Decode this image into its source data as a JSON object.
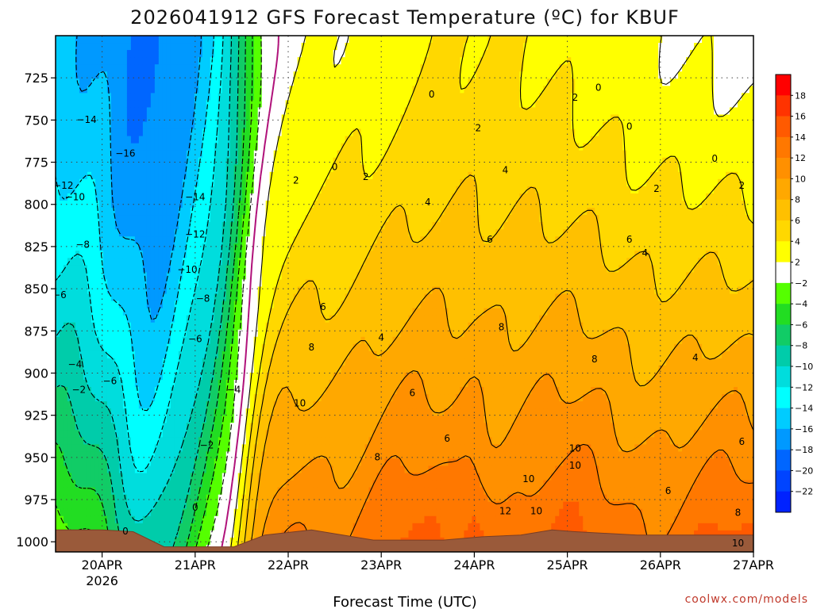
{
  "chart_data": {
    "type": "heatmap",
    "title": "2026041912 GFS Forecast Temperature (ºC) for KBUF",
    "xlabel": "Forecast Time (UTC)",
    "ylabel": "",
    "credit": "coolwx.com/models",
    "x_ticks": [
      {
        "value": "2026-04-20T00",
        "label": "20APR",
        "sublabel": "2026"
      },
      {
        "value": "2026-04-21T00",
        "label": "21APR",
        "sublabel": ""
      },
      {
        "value": "2026-04-22T00",
        "label": "22APR",
        "sublabel": ""
      },
      {
        "value": "2026-04-23T00",
        "label": "23APR",
        "sublabel": ""
      },
      {
        "value": "2026-04-24T00",
        "label": "24APR",
        "sublabel": ""
      },
      {
        "value": "2026-04-25T00",
        "label": "25APR",
        "sublabel": ""
      },
      {
        "value": "2026-04-26T00",
        "label": "26APR",
        "sublabel": ""
      },
      {
        "value": "2026-04-27T00",
        "label": "27APR",
        "sublabel": ""
      }
    ],
    "xlim": [
      "2026-04-19T12",
      "2026-04-27T00"
    ],
    "y_ticks": [
      725,
      750,
      775,
      800,
      825,
      850,
      875,
      900,
      925,
      950,
      975,
      1000
    ],
    "ylim": [
      700,
      1006
    ],
    "y_unit": "hPa",
    "grid": true,
    "colorbar": {
      "levels": [
        20,
        18,
        16,
        14,
        12,
        10,
        8,
        6,
        4,
        2,
        -2,
        -4,
        -6,
        -8,
        -10,
        -12,
        -14,
        -16,
        -18,
        -20,
        -22,
        -24
      ],
      "labels": [
        "18",
        "16",
        "14",
        "12",
        "10",
        "8",
        "6",
        "4",
        "2",
        "−2",
        "−4",
        "−6",
        "−8",
        "−10",
        "−12",
        "−14",
        "−16",
        "−18",
        "−20",
        "−22"
      ],
      "colors": [
        "#ff0000",
        "#ff3300",
        "#ff5a00",
        "#ff7800",
        "#ff9000",
        "#ffa800",
        "#ffc000",
        "#ffd800",
        "#ffff00",
        "#ffffff",
        "#55ff00",
        "#22dd22",
        "#11cc66",
        "#00ccaa",
        "#00dddd",
        "#00ffff",
        "#00ccff",
        "#0099ff",
        "#0066ff",
        "#0044ff",
        "#0022ff"
      ]
    },
    "contour_labels": [
      {
        "x": "2026-04-19T20",
        "y": 750,
        "text": "−14"
      },
      {
        "x": "2026-04-19T14",
        "y": 789,
        "text": "−12"
      },
      {
        "x": "2026-04-19T17",
        "y": 796,
        "text": "−10"
      },
      {
        "x": "2026-04-19T19",
        "y": 824,
        "text": "−8"
      },
      {
        "x": "2026-04-19T13",
        "y": 854,
        "text": "−6"
      },
      {
        "x": "2026-04-20T06",
        "y": 770,
        "text": "−16"
      },
      {
        "x": "2026-04-21T00",
        "y": 796,
        "text": "−14"
      },
      {
        "x": "2026-04-21T00",
        "y": 818,
        "text": "−12"
      },
      {
        "x": "2026-04-20T22",
        "y": 839,
        "text": "−10"
      },
      {
        "x": "2026-04-21T02",
        "y": 856,
        "text": "−8"
      },
      {
        "x": "2026-04-21T00",
        "y": 880,
        "text": "−6"
      },
      {
        "x": "2026-04-21T10",
        "y": 910,
        "text": "−4"
      },
      {
        "x": "2026-04-19T17",
        "y": 895,
        "text": "−4"
      },
      {
        "x": "2026-04-20T02",
        "y": 905,
        "text": "−6"
      },
      {
        "x": "2026-04-19T18",
        "y": 910,
        "text": "−2"
      },
      {
        "x": "2026-04-21T03",
        "y": 943,
        "text": "−2"
      },
      {
        "x": "2026-04-21T00",
        "y": 980,
        "text": "0"
      },
      {
        "x": "2026-04-20T06",
        "y": 994,
        "text": "0"
      },
      {
        "x": "2026-04-22T12",
        "y": 778,
        "text": "0"
      },
      {
        "x": "2026-04-22T02",
        "y": 786,
        "text": "2"
      },
      {
        "x": "2026-04-22T20",
        "y": 784,
        "text": "2"
      },
      {
        "x": "2026-04-23T13",
        "y": 735,
        "text": "0"
      },
      {
        "x": "2026-04-23T12",
        "y": 799,
        "text": "4"
      },
      {
        "x": "2026-04-24T01",
        "y": 755,
        "text": "2"
      },
      {
        "x": "2026-04-24T08",
        "y": 780,
        "text": "4"
      },
      {
        "x": "2026-04-24T04",
        "y": 821,
        "text": "6"
      },
      {
        "x": "2026-04-25T08",
        "y": 731,
        "text": "0"
      },
      {
        "x": "2026-04-25T02",
        "y": 737,
        "text": "2"
      },
      {
        "x": "2026-04-25T16",
        "y": 754,
        "text": "0"
      },
      {
        "x": "2026-04-25T23",
        "y": 791,
        "text": "2"
      },
      {
        "x": "2026-04-26T14",
        "y": 773,
        "text": "0"
      },
      {
        "x": "2026-04-26T21",
        "y": 789,
        "text": "2"
      },
      {
        "x": "2026-04-25T16",
        "y": 821,
        "text": "6"
      },
      {
        "x": "2026-04-25T20",
        "y": 829,
        "text": "4"
      },
      {
        "x": "2026-04-24T07",
        "y": 873,
        "text": "8"
      },
      {
        "x": "2026-04-25T07",
        "y": 892,
        "text": "8"
      },
      {
        "x": "2026-04-26T09",
        "y": 891,
        "text": "4"
      },
      {
        "x": "2026-04-22T09",
        "y": 861,
        "text": "6"
      },
      {
        "x": "2026-04-23T00",
        "y": 879,
        "text": "4"
      },
      {
        "x": "2026-04-22T06",
        "y": 885,
        "text": "8"
      },
      {
        "x": "2026-04-22T03",
        "y": 918,
        "text": "10"
      },
      {
        "x": "2026-04-23T08",
        "y": 912,
        "text": "6"
      },
      {
        "x": "2026-04-23T17",
        "y": 939,
        "text": "6"
      },
      {
        "x": "2026-04-22T23",
        "y": 950,
        "text": "8"
      },
      {
        "x": "2026-04-24T14",
        "y": 963,
        "text": "10"
      },
      {
        "x": "2026-04-25T02",
        "y": 955,
        "text": "10"
      },
      {
        "x": "2026-04-25T02",
        "y": 945,
        "text": "10"
      },
      {
        "x": "2026-04-24T08",
        "y": 982,
        "text": "12"
      },
      {
        "x": "2026-04-24T16",
        "y": 982,
        "text": "10"
      },
      {
        "x": "2026-04-26T02",
        "y": 970,
        "text": "6"
      },
      {
        "x": "2026-04-26T21",
        "y": 941,
        "text": "6"
      },
      {
        "x": "2026-04-26T20",
        "y": 983,
        "text": "8"
      },
      {
        "x": "2026-04-26T20",
        "y": 1001,
        "text": "10"
      }
    ]
  }
}
